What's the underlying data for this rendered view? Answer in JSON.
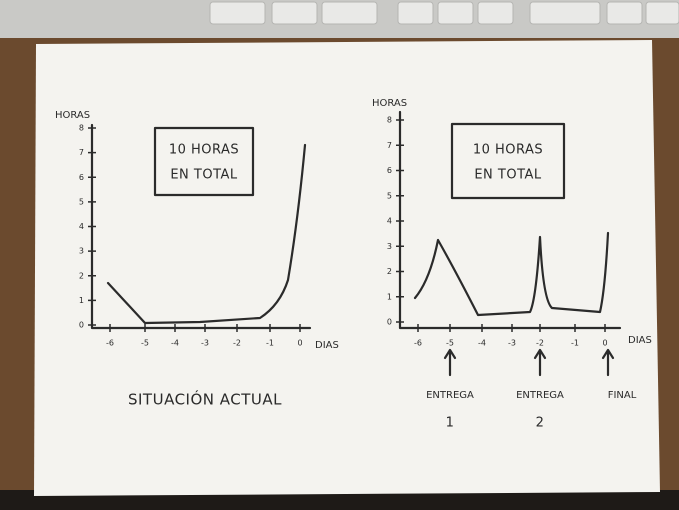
{
  "left_sketch": {
    "y_label": "HORAS",
    "x_label": "DIAS",
    "note": [
      "10 HORAS",
      "EN TOTAL"
    ],
    "caption": "SITUACIÓN ACTUAL",
    "y_ticks": [
      "8",
      "7",
      "6",
      "5",
      "4",
      "3",
      "2",
      "1",
      "0"
    ],
    "x_ticks": [
      "-6",
      "-5",
      "-4",
      "-3",
      "-2",
      "-1",
      "0"
    ]
  },
  "right_sketch": {
    "y_label": "HORAS",
    "x_label": "DIAS",
    "note": [
      "10 HORAS",
      "EN TOTAL"
    ],
    "y_ticks": [
      "8",
      "7",
      "6",
      "5",
      "4",
      "3",
      "2",
      "1",
      "0"
    ],
    "x_ticks": [
      "-6",
      "-5",
      "-4",
      "-3",
      "-2",
      "-1",
      "0"
    ],
    "markers": [
      {
        "label": [
          "ENTREGA",
          "1"
        ]
      },
      {
        "label": [
          "ENTREGA",
          "2"
        ]
      },
      {
        "label": [
          "FINAL"
        ]
      }
    ]
  }
}
